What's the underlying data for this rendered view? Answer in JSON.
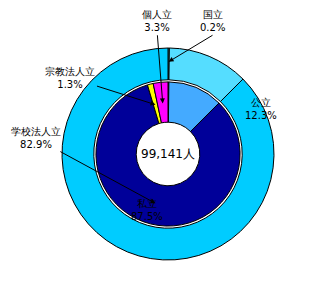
{
  "chart_data": [
    {
      "type": "pie",
      "categories": [
        "国立",
        "公立",
        "私立"
      ],
      "values": [
        0.2,
        12.3,
        87.5
      ],
      "value_labels": [
        "0.2%",
        "12.3%",
        "87.5%"
      ],
      "data_labels": true,
      "colors": [
        "#55ffff",
        "#55ddff",
        "#00ccff"
      ],
      "annotations": [
        {
          "text": "99,141人"
        }
      ]
    },
    {
      "type": "pie",
      "categories": [
        null,
        null,
        "学校法人立",
        "宗教法人立",
        "個人立"
      ],
      "values": [
        0.2,
        12.3,
        82.9,
        1.3,
        3.3
      ],
      "value_labels": [
        null,
        null,
        "82.9%",
        "1.3%",
        "3.3%"
      ],
      "data_labels": true,
      "colors": [
        "#1a1aff",
        "#44aaff",
        "#000099",
        "#ffff00",
        "#ff00ff"
      ]
    }
  ]
}
